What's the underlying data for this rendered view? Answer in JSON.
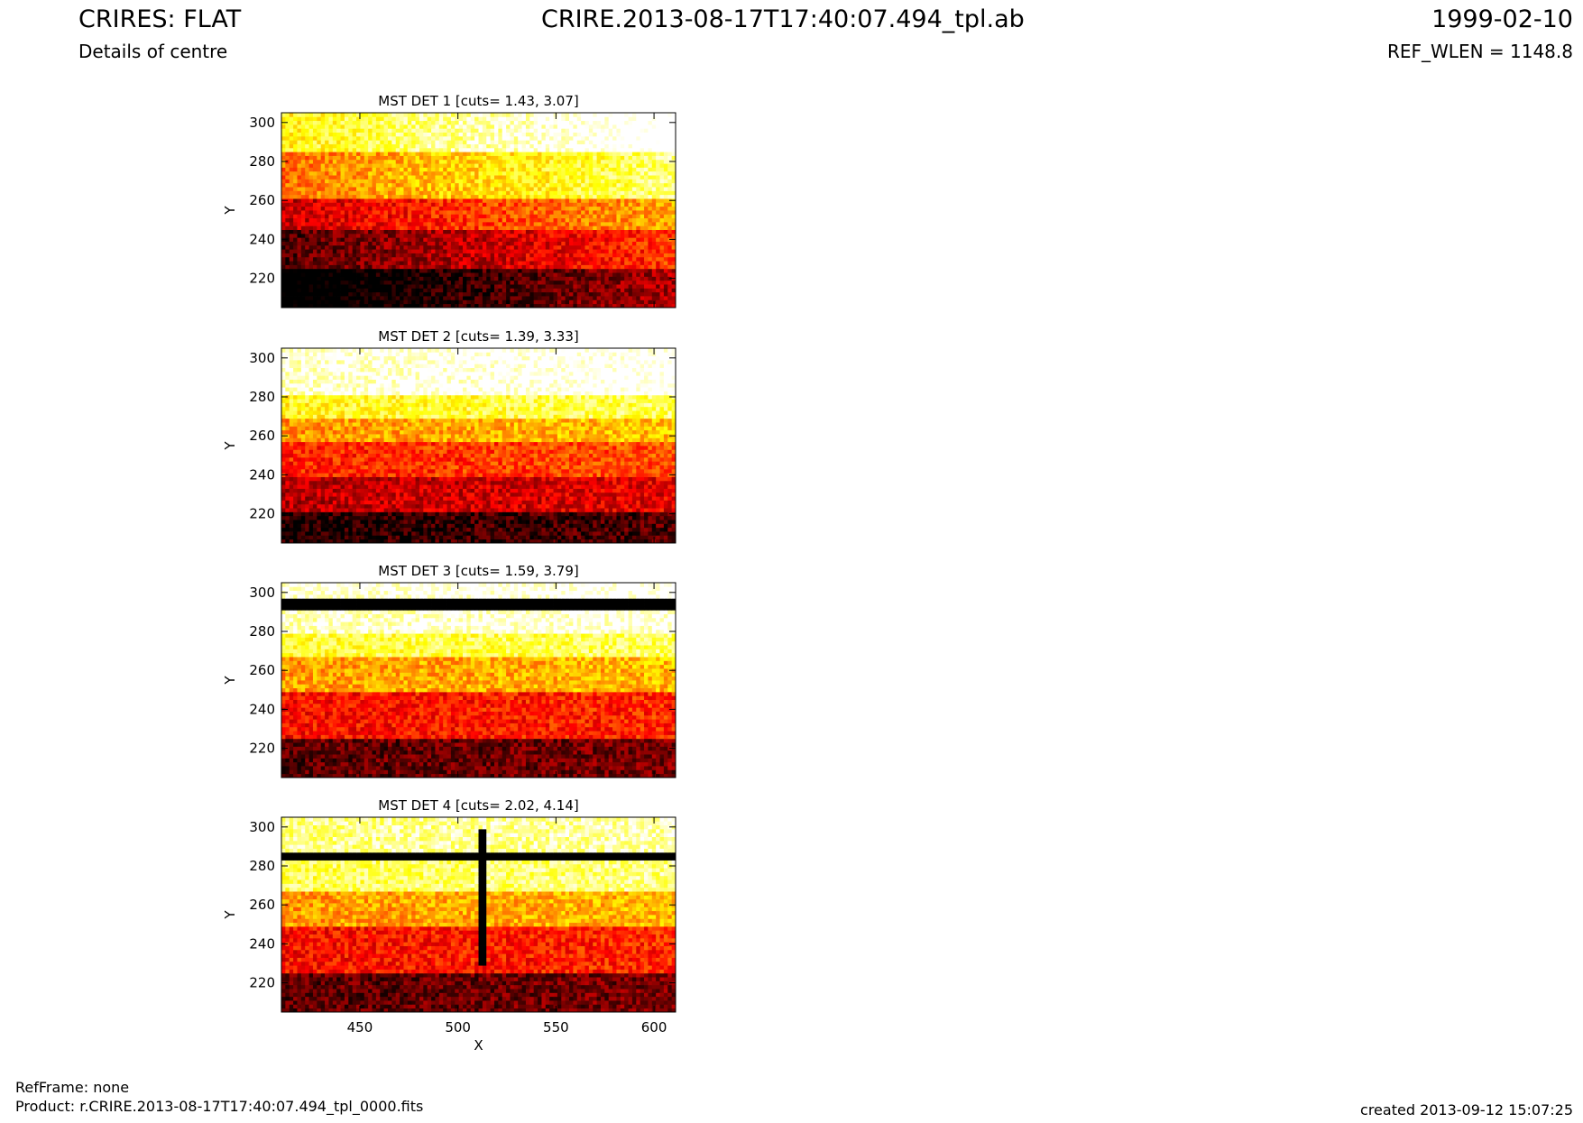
{
  "header": {
    "title_left": "CRIRES: FLAT",
    "title_center": "CRIRE.2013-08-17T17:40:07.494_tpl.ab",
    "title_right": "1999-02-10",
    "subtitle_left": "Details of centre",
    "subtitle_right": "REF_WLEN = 1148.8"
  },
  "footer": {
    "ref_frame": "RefFrame: none",
    "product": "Product: r.CRIRE.2013-08-17T17:40:07.494_tpl_0000.fits",
    "created": "created 2013-09-12 15:07:25"
  },
  "chart_data": [
    {
      "type": "heatmap",
      "title": "MST DET 1 [cuts= 1.43, 3.07]",
      "cuts": [
        1.43,
        3.07
      ],
      "ylabel": "Y",
      "xlabel": "",
      "xlim": [
        410,
        611
      ],
      "ylim": [
        205,
        305
      ],
      "yticks": [
        220,
        240,
        260,
        280,
        300
      ],
      "xticks": [],
      "colormap": "hot",
      "description_of_levels": [
        {
          "y_range": [
            205,
            225
          ],
          "level": 0.08
        },
        {
          "y_range": [
            225,
            245
          ],
          "level": 0.28
        },
        {
          "y_range": [
            245,
            262
          ],
          "level": 0.45
        },
        {
          "y_range": [
            262,
            285
          ],
          "level": 0.7
        },
        {
          "y_range": [
            285,
            305
          ],
          "level": 0.92
        }
      ],
      "x_gradient": 0.35
    },
    {
      "type": "heatmap",
      "title": "MST DET 2 [cuts= 1.39, 3.33]",
      "cuts": [
        1.39,
        3.33
      ],
      "ylabel": "Y",
      "xlabel": "",
      "xlim": [
        410,
        611
      ],
      "ylim": [
        205,
        305
      ],
      "yticks": [
        220,
        240,
        260,
        280,
        300
      ],
      "xticks": [],
      "colormap": "hot",
      "description_of_levels": [
        {
          "y_range": [
            205,
            222
          ],
          "level": 0.08
        },
        {
          "y_range": [
            222,
            240
          ],
          "level": 0.3
        },
        {
          "y_range": [
            240,
            258
          ],
          "level": 0.45
        },
        {
          "y_range": [
            258,
            270
          ],
          "level": 0.62
        },
        {
          "y_range": [
            270,
            282
          ],
          "level": 0.8
        },
        {
          "y_range": [
            282,
            305
          ],
          "level": 1.0
        }
      ],
      "x_gradient": 0.08
    },
    {
      "type": "heatmap",
      "title": "MST DET 3 [cuts= 1.59, 3.79]",
      "cuts": [
        1.59,
        3.79
      ],
      "ylabel": "Y",
      "xlabel": "",
      "xlim": [
        410,
        611
      ],
      "ylim": [
        205,
        305
      ],
      "yticks": [
        220,
        240,
        260,
        280,
        300
      ],
      "xticks": [],
      "colormap": "hot",
      "description_of_levels": [
        {
          "y_range": [
            205,
            225
          ],
          "level": 0.15
        },
        {
          "y_range": [
            225,
            250
          ],
          "level": 0.4
        },
        {
          "y_range": [
            250,
            268
          ],
          "level": 0.62
        },
        {
          "y_range": [
            268,
            280
          ],
          "level": 0.82
        },
        {
          "y_range": [
            280,
            291
          ],
          "level": 0.97
        },
        {
          "y_range": [
            291,
            297
          ],
          "level": 0.0
        },
        {
          "y_range": [
            297,
            305
          ],
          "level": 1.0
        }
      ],
      "x_gradient": 0.05
    },
    {
      "type": "heatmap",
      "title": "MST DET 4 [cuts= 2.02, 4.14]",
      "cuts": [
        2.02,
        4.14
      ],
      "ylabel": "Y",
      "xlabel": "X",
      "xlim": [
        410,
        611
      ],
      "ylim": [
        205,
        305
      ],
      "yticks": [
        220,
        240,
        260,
        280,
        300
      ],
      "xticks": [
        450,
        500,
        550,
        600
      ],
      "colormap": "hot",
      "description_of_levels": [
        {
          "y_range": [
            205,
            225
          ],
          "level": 0.15
        },
        {
          "y_range": [
            225,
            250
          ],
          "level": 0.4
        },
        {
          "y_range": [
            250,
            268
          ],
          "level": 0.62
        },
        {
          "y_range": [
            268,
            283
          ],
          "level": 0.85
        },
        {
          "y_range": [
            283,
            287
          ],
          "level": 0.0
        },
        {
          "y_range": [
            287,
            305
          ],
          "level": 0.9
        }
      ],
      "x_gradient": 0.05,
      "dark_column_x": 512
    }
  ]
}
